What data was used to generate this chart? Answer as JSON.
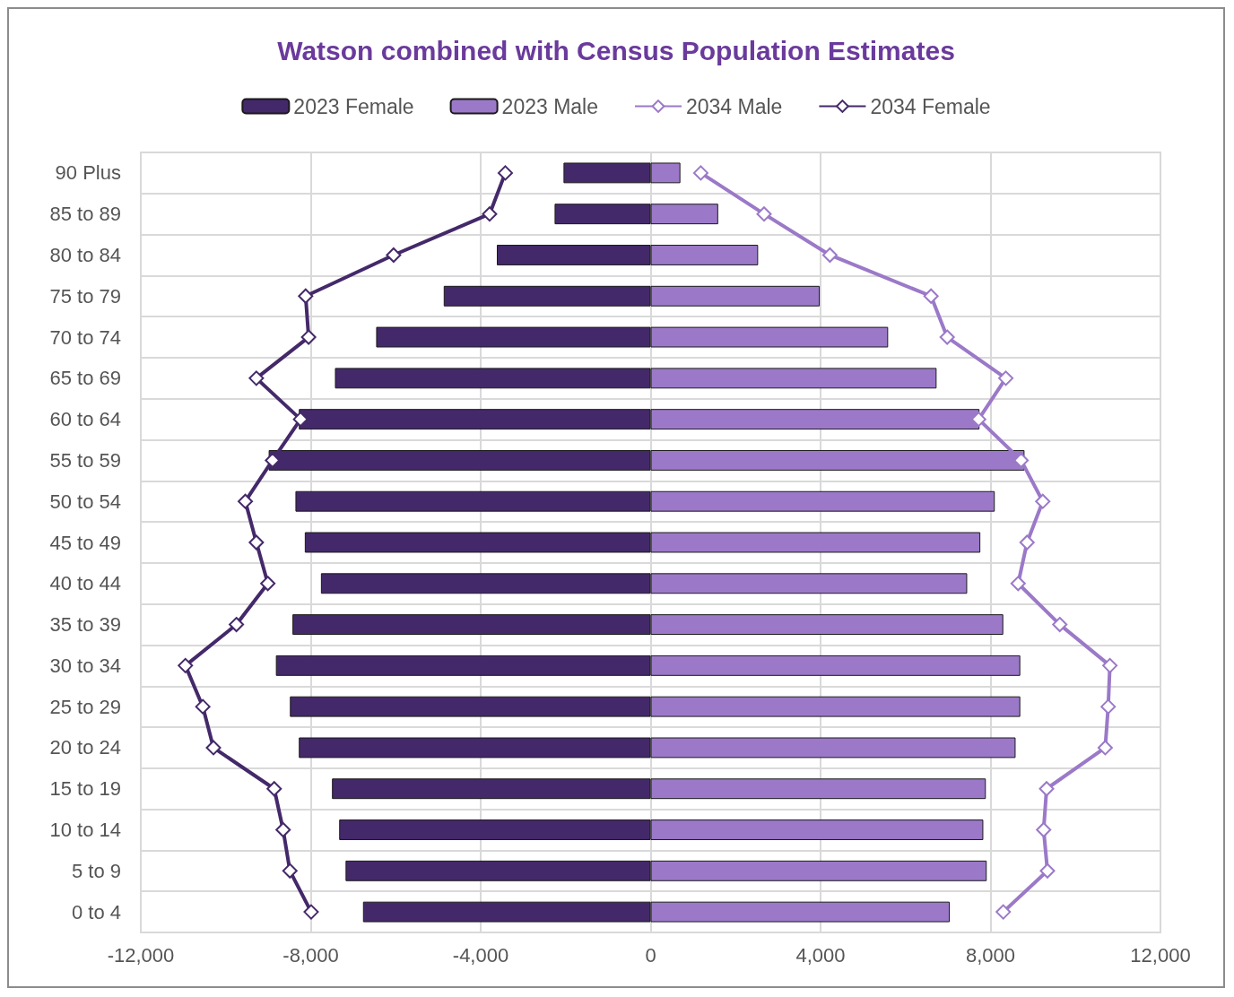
{
  "chart_data": {
    "type": "bar",
    "orientation": "horizontal",
    "title": "Watson combined with Census Population Estimates",
    "categories": [
      "90 Plus",
      "85 to 89",
      "80 to 84",
      "75 to 79",
      "70 to 74",
      "65 to 69",
      "60 to 64",
      "55 to 59",
      "50 to 54",
      "45 to 49",
      "40 to 44",
      "35 to 39",
      "30 to 34",
      "25 to 29",
      "20 to 24",
      "15 to 19",
      "10 to 14",
      "5 to 9",
      "0 to 4"
    ],
    "series": [
      {
        "name": "2023 Female",
        "color": "#44296a",
        "values": [
          -2050,
          -2260,
          -3620,
          -4870,
          -6460,
          -7430,
          -8280,
          -8990,
          -8360,
          -8140,
          -7760,
          -8430,
          -8820,
          -8490,
          -8280,
          -7500,
          -7330,
          -7180,
          -6770
        ]
      },
      {
        "name": "2023 Male",
        "color": "#9b79c8",
        "values": [
          700,
          1590,
          2530,
          3980,
          5590,
          6730,
          7740,
          8800,
          8100,
          7760,
          7450,
          8300,
          8700,
          8700,
          8590,
          7890,
          7830,
          7910,
          7040
        ]
      },
      {
        "name": "2034 Male",
        "type": "line",
        "color": "#9b79c8",
        "values": [
          1180,
          2670,
          4220,
          6600,
          6980,
          8360,
          7720,
          8720,
          9230,
          8860,
          8650,
          9630,
          10810,
          10770,
          10700,
          9320,
          9250,
          9340,
          8300
        ]
      },
      {
        "name": "2034 Female",
        "type": "line",
        "color": "#44296a",
        "values": [
          -3420,
          -3790,
          -6050,
          -8120,
          -8050,
          -9280,
          -8240,
          -8900,
          -9540,
          -9280,
          -9010,
          -9750,
          -10950,
          -10540,
          -10290,
          -8860,
          -8650,
          -8490,
          -7990
        ]
      }
    ],
    "xlim": [
      -12000,
      12000
    ],
    "xticks": [
      {
        "value": -12000,
        "label": "-12,000"
      },
      {
        "value": -8000,
        "label": "-8,000"
      },
      {
        "value": -4000,
        "label": "-4,000"
      },
      0,
      {
        "value": 4000,
        "label": "4,000"
      },
      {
        "value": 8000,
        "label": "8,000"
      },
      {
        "value": 12000,
        "label": "12,000"
      }
    ],
    "stacked": true,
    "grid": true,
    "legend": "top",
    "marker": "diamond",
    "line_style": "solid"
  }
}
